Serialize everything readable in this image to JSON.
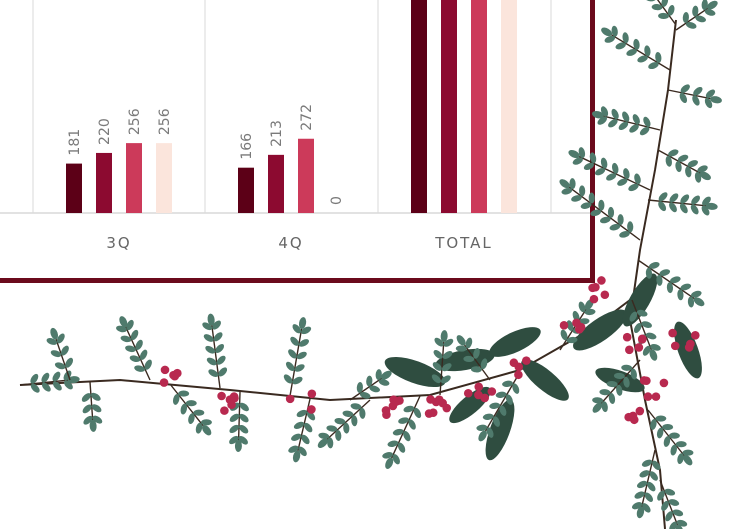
{
  "chart_data": {
    "type": "bar",
    "categories": [
      "3Q",
      "4Q",
      "TOTAL"
    ],
    "series": [
      {
        "values": [
          181,
          166,
          null
        ]
      },
      {
        "values": [
          220,
          213,
          null
        ]
      },
      {
        "values": [
          256,
          272,
          null
        ]
      },
      {
        "values": [
          256,
          0,
          null
        ]
      }
    ],
    "ylim": [
      0,
      1000
    ],
    "grid": false,
    "colors": {
      "series": [
        "#5c0017",
        "#8c0a30",
        "#cc3a5a",
        "#fbe5dc"
      ],
      "frame": "#6b0a1c",
      "leaf": "#4f7a6c",
      "dark_leaf": "#2f4d40",
      "berry": "#b8294f",
      "stem": "#3a2a20"
    },
    "decoration": "evergreen-berry-garland"
  }
}
